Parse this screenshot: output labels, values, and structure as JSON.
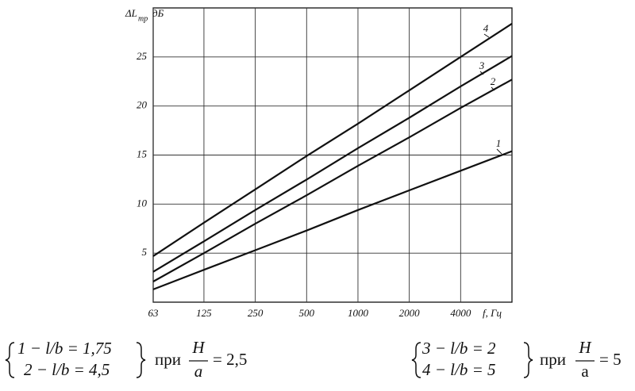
{
  "chart_data": {
    "type": "line",
    "ylabel": "ΔL",
    "ylabel_sub": "тр",
    "ylabel_unit": "дБ",
    "xlabel": "f, Гц",
    "x": [
      63,
      125,
      250,
      500,
      1000,
      2000,
      4000,
      8000
    ],
    "log_x": true,
    "grid": true,
    "xlim": [
      63,
      8000
    ],
    "xticks": [
      63,
      125,
      250,
      500,
      1000,
      2000,
      4000
    ],
    "ylim": [
      0,
      30
    ],
    "yticks": [
      5,
      10,
      15,
      20,
      25
    ],
    "series": [
      {
        "name": "1",
        "color": "#111111",
        "values": [
          1.3,
          3.3,
          5.3,
          7.3,
          9.4,
          11.4,
          13.4,
          15.4
        ]
      },
      {
        "name": "2",
        "color": "#111111",
        "values": [
          2.1,
          5.0,
          8.0,
          10.9,
          13.9,
          16.8,
          19.8,
          22.7
        ]
      },
      {
        "name": "3",
        "color": "#111111",
        "values": [
          3.1,
          6.2,
          9.4,
          12.5,
          15.7,
          18.8,
          22.0,
          25.1
        ]
      },
      {
        "name": "4",
        "color": "#111111",
        "values": [
          4.7,
          8.1,
          11.5,
          14.9,
          18.2,
          21.6,
          25.0,
          28.4
        ]
      }
    ]
  },
  "notes": [
    {
      "lines": [
        "1 − l/b = 1,75",
        "2 − l/b = 4,5"
      ],
      "condition": "при",
      "numerator": "H",
      "denominator": "a",
      "value": "= 2,5"
    },
    {
      "lines": [
        "3 − l/b = 2",
        "4 − l/b = 5"
      ],
      "condition": "при",
      "numerator": "H",
      "denominator": "a",
      "value": "= 5"
    }
  ]
}
